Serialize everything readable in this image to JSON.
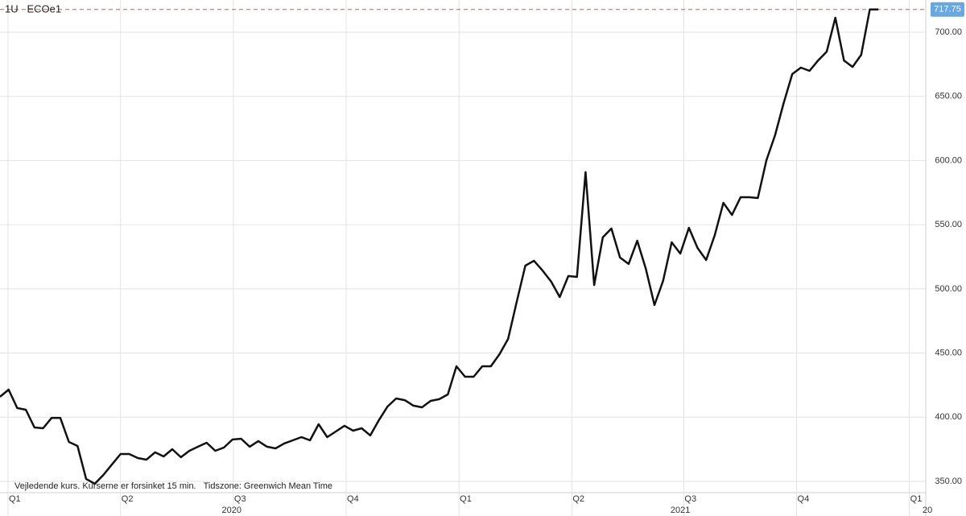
{
  "chart_data": {
    "type": "line",
    "title": "1U   ECOe1",
    "note": "Vejledende kurs. Kurserne er forsinket 15 min.   Tidszone: Greenwich Mean Time",
    "color": "#111111",
    "last_line_color": "#e05050",
    "last_label_color": "#6aa7e0",
    "grid": true,
    "values": [
      415.9,
      421.5,
      407.1,
      405.8,
      392.0,
      391.4,
      399.5,
      399.5,
      380.7,
      377.6,
      351.9,
      348.1,
      355.0,
      363.2,
      371.3,
      371.3,
      368.2,
      366.9,
      372.6,
      369.4,
      375.1,
      368.8,
      373.8,
      377.0,
      380.1,
      373.8,
      376.3,
      382.6,
      383.2,
      377.0,
      381.4,
      377.0,
      375.7,
      379.5,
      382.0,
      384.5,
      382.0,
      394.5,
      384.5,
      388.9,
      393.3,
      389.5,
      391.4,
      385.8,
      397.7,
      408.3,
      414.6,
      413.3,
      409.0,
      407.7,
      412.7,
      414.0,
      417.7,
      439.7,
      431.5,
      431.5,
      439.7,
      439.7,
      449.1,
      461.0,
      489.9,
      518.1,
      521.9,
      514.3,
      505.6,
      493.6,
      510.0,
      509.3,
      590.9,
      503.0,
      540.1,
      547.0,
      524.4,
      519.4,
      537.5,
      515.6,
      487.4,
      506.2,
      536.3,
      527.5,
      547.6,
      531.9,
      522.5,
      541.9,
      567.0,
      557.6,
      571.4,
      571.4,
      570.8,
      600.3,
      619.7,
      644.8,
      667.4,
      672.4,
      669.9,
      678.0,
      684.9,
      711.3,
      678.0,
      673.0,
      682.4,
      717.75,
      717.75
    ],
    "xlim": [
      0,
      107.5
    ],
    "xticks": [
      {
        "value": 0.93,
        "label": "Q1"
      },
      {
        "value": 14.0,
        "label": "Q2"
      },
      {
        "value": 27.1,
        "label": "Q3"
      },
      {
        "value": 40.2,
        "label": "Q4"
      },
      {
        "value": 53.3,
        "label": "Q1"
      },
      {
        "value": 66.4,
        "label": "Q2"
      },
      {
        "value": 79.4,
        "label": "Q3"
      },
      {
        "value": 92.5,
        "label": "Q4"
      },
      {
        "value": 105.6,
        "label": "Q1"
      }
    ],
    "year_ticks": [
      {
        "value": 26.9,
        "label": "2020"
      },
      {
        "value": 79.0,
        "label": "2021"
      },
      {
        "value": 107.7,
        "label": "20"
      }
    ],
    "ylim": [
      341.2,
      725.1
    ],
    "yticks": [
      {
        "value": 350,
        "label": "350.00"
      },
      {
        "value": 400,
        "label": "400.00"
      },
      {
        "value": 450,
        "label": "450.00"
      },
      {
        "value": 500,
        "label": "500.00"
      },
      {
        "value": 550,
        "label": "550.00"
      },
      {
        "value": 600,
        "label": "600.00"
      },
      {
        "value": 650,
        "label": "650.00"
      },
      {
        "value": 700,
        "label": "700.00"
      }
    ]
  }
}
